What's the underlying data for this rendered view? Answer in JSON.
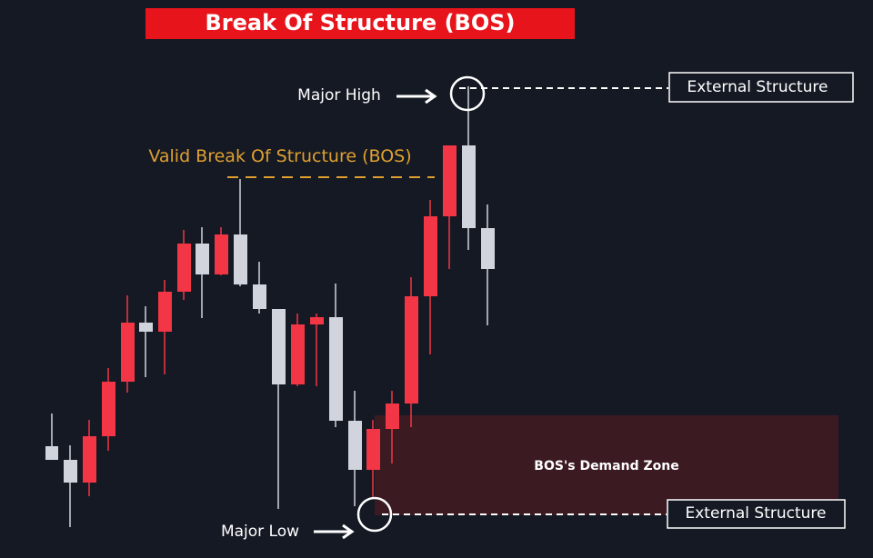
{
  "header": {
    "title": "Break Of Structure (BOS)"
  },
  "labels": {
    "major_high": "Major High",
    "major_low": "Major Low",
    "valid_bos": "Valid Break Of Structure (BOS)",
    "demand_zone": "BOS's Demand Zone"
  },
  "boxes": {
    "external_top": "External Structure",
    "external_bottom": "External Structure"
  }
}
